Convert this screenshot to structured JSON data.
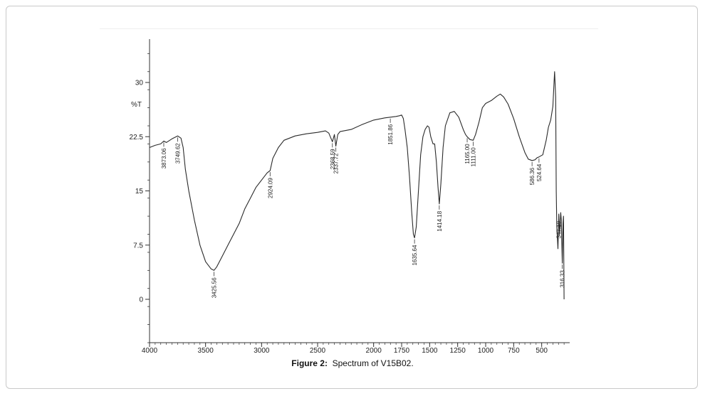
{
  "figure": {
    "caption_label": "Figure 2:",
    "caption_text": "Spectrum of V15B02."
  },
  "chart_data": {
    "type": "line",
    "ylabel": "%T",
    "xlabel": "",
    "xlim": [
      4000,
      250
    ],
    "ylim": [
      -6,
      36
    ],
    "x_ticks": [
      4000,
      3500,
      3000,
      2500,
      2000,
      1750,
      1500,
      1250,
      1000,
      750,
      500
    ],
    "y_ticks": [
      0,
      7.5,
      15,
      22.5,
      30
    ],
    "grid": false,
    "series": [
      {
        "values": [
          [
            4000,
            21.0
          ],
          [
            3950,
            21.3
          ],
          [
            3900,
            21.5
          ],
          [
            3873,
            21.9
          ],
          [
            3850,
            21.7
          ],
          [
            3800,
            22.2
          ],
          [
            3749,
            22.6
          ],
          [
            3720,
            22.3
          ],
          [
            3700,
            21.0
          ],
          [
            3680,
            18.0
          ],
          [
            3650,
            15.0
          ],
          [
            3600,
            11.0
          ],
          [
            3550,
            7.5
          ],
          [
            3500,
            5.2
          ],
          [
            3450,
            4.2
          ],
          [
            3425,
            4.0
          ],
          [
            3400,
            4.5
          ],
          [
            3350,
            6.0
          ],
          [
            3300,
            7.5
          ],
          [
            3250,
            9.0
          ],
          [
            3200,
            10.5
          ],
          [
            3150,
            12.5
          ],
          [
            3100,
            14.0
          ],
          [
            3050,
            15.5
          ],
          [
            3000,
            16.5
          ],
          [
            2950,
            17.5
          ],
          [
            2924,
            17.8
          ],
          [
            2900,
            19.5
          ],
          [
            2850,
            21.0
          ],
          [
            2800,
            22.0
          ],
          [
            2700,
            22.6
          ],
          [
            2600,
            22.9
          ],
          [
            2500,
            23.1
          ],
          [
            2430,
            23.3
          ],
          [
            2400,
            23.0
          ],
          [
            2368,
            21.8
          ],
          [
            2350,
            22.8
          ],
          [
            2337,
            21.2
          ],
          [
            2320,
            22.8
          ],
          [
            2300,
            23.2
          ],
          [
            2200,
            23.5
          ],
          [
            2100,
            24.2
          ],
          [
            2000,
            24.8
          ],
          [
            1900,
            25.1
          ],
          [
            1850,
            25.2
          ],
          [
            1800,
            25.3
          ],
          [
            1770,
            25.4
          ],
          [
            1750,
            25.5
          ],
          [
            1735,
            25.0
          ],
          [
            1720,
            23.5
          ],
          [
            1700,
            21.0
          ],
          [
            1680,
            17.0
          ],
          [
            1660,
            12.0
          ],
          [
            1645,
            9.0
          ],
          [
            1635,
            8.5
          ],
          [
            1620,
            10.0
          ],
          [
            1600,
            15.0
          ],
          [
            1580,
            20.0
          ],
          [
            1560,
            22.5
          ],
          [
            1540,
            23.5
          ],
          [
            1520,
            24.0
          ],
          [
            1505,
            23.8
          ],
          [
            1490,
            22.5
          ],
          [
            1470,
            21.5
          ],
          [
            1455,
            21.5
          ],
          [
            1440,
            19.0
          ],
          [
            1425,
            15.5
          ],
          [
            1414,
            13.2
          ],
          [
            1400,
            16.0
          ],
          [
            1380,
            21.0
          ],
          [
            1360,
            24.0
          ],
          [
            1320,
            25.8
          ],
          [
            1280,
            26.0
          ],
          [
            1240,
            25.2
          ],
          [
            1200,
            23.5
          ],
          [
            1180,
            22.8
          ],
          [
            1165,
            22.5
          ],
          [
            1140,
            22.1
          ],
          [
            1111,
            22.0
          ],
          [
            1090,
            22.8
          ],
          [
            1060,
            24.5
          ],
          [
            1030,
            26.5
          ],
          [
            1000,
            27.1
          ],
          [
            950,
            27.5
          ],
          [
            900,
            28.1
          ],
          [
            870,
            28.4
          ],
          [
            840,
            28.0
          ],
          [
            800,
            27.0
          ],
          [
            750,
            25.0
          ],
          [
            700,
            22.5
          ],
          [
            650,
            20.3
          ],
          [
            620,
            19.4
          ],
          [
            586,
            19.2
          ],
          [
            560,
            19.3
          ],
          [
            540,
            19.6
          ],
          [
            524,
            19.7
          ],
          [
            490,
            20.0
          ],
          [
            460,
            22.0
          ],
          [
            440,
            23.8
          ],
          [
            420,
            24.8
          ],
          [
            400,
            26.7
          ],
          [
            390,
            30.0
          ],
          [
            385,
            31.5
          ],
          [
            375,
            28.0
          ],
          [
            370,
            15.0
          ],
          [
            365,
            10.0
          ],
          [
            355,
            7.0
          ],
          [
            347,
            11.8
          ],
          [
            340,
            9.0
          ],
          [
            330,
            12.0
          ],
          [
            325,
            11.0
          ],
          [
            316,
            5.0
          ],
          [
            310,
            10.5
          ],
          [
            305,
            11.5
          ],
          [
            300,
            0.0
          ]
        ]
      }
    ],
    "peak_labels": [
      {
        "x": 3873,
        "text": "3873.06"
      },
      {
        "x": 3749,
        "text": "3749.62"
      },
      {
        "x": 3425,
        "text": "3425.56"
      },
      {
        "x": 2924,
        "text": "2924.09"
      },
      {
        "x": 2368,
        "text": "2368.59"
      },
      {
        "x": 2337,
        "text": "2337.72"
      },
      {
        "x": 1851,
        "text": "1851.86"
      },
      {
        "x": 1635,
        "text": "1635.64"
      },
      {
        "x": 1414,
        "text": "1414.18"
      },
      {
        "x": 1165,
        "text": "1165.00"
      },
      {
        "x": 1111,
        "text": "1111.00"
      },
      {
        "x": 586,
        "text": "586.36"
      },
      {
        "x": 524,
        "text": "524.64"
      },
      {
        "x": 347,
        "text": "347.19"
      },
      {
        "x": 316,
        "text": "316.33"
      }
    ]
  }
}
